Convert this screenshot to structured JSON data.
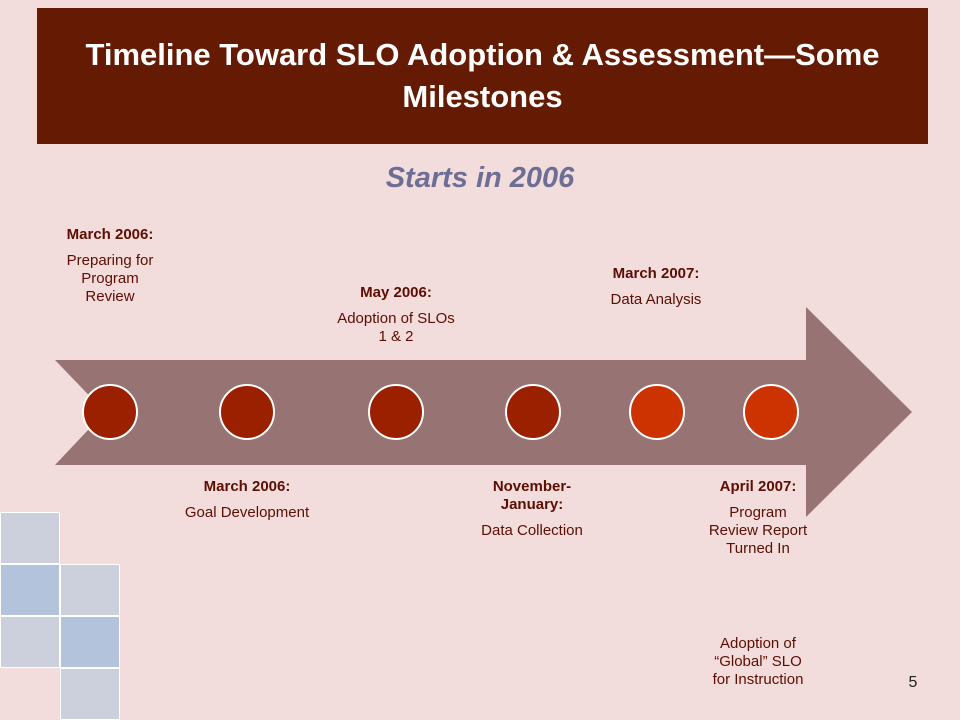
{
  "title": "Timeline Toward SLO Adoption & Assessment—Some Milestones",
  "subtitle": "Starts in 2006",
  "milestones": [
    {
      "date": "March 2006:",
      "description": "Preparing for Program Review",
      "position": "above",
      "color": "#9a2000"
    },
    {
      "date": "March 2006:",
      "description": "Goal Development",
      "position": "below",
      "color": "#9a2000"
    },
    {
      "date": "May 2006:",
      "description": "Adoption of SLOs 1 & 2",
      "position": "above",
      "color": "#9a2000"
    },
    {
      "date": "November-January:",
      "description": "Data Collection",
      "position": "below",
      "color": "#9a2000"
    },
    {
      "date": "March 2007:",
      "description": "Data Analysis",
      "position": "above",
      "color": "#cc3300"
    },
    {
      "date": "April 2007:",
      "description": "Program Review Report Turned In",
      "position": "below",
      "color": "#cc3300"
    }
  ],
  "extra_note": "Adoption of “Global” SLO for Instruction",
  "page_number": "5",
  "colors": {
    "background": "#f2dcdc",
    "title_bar": "#651a03",
    "arrow": "#977373",
    "subtitle": "#6d6e96",
    "label_text": "#5c0e02"
  }
}
